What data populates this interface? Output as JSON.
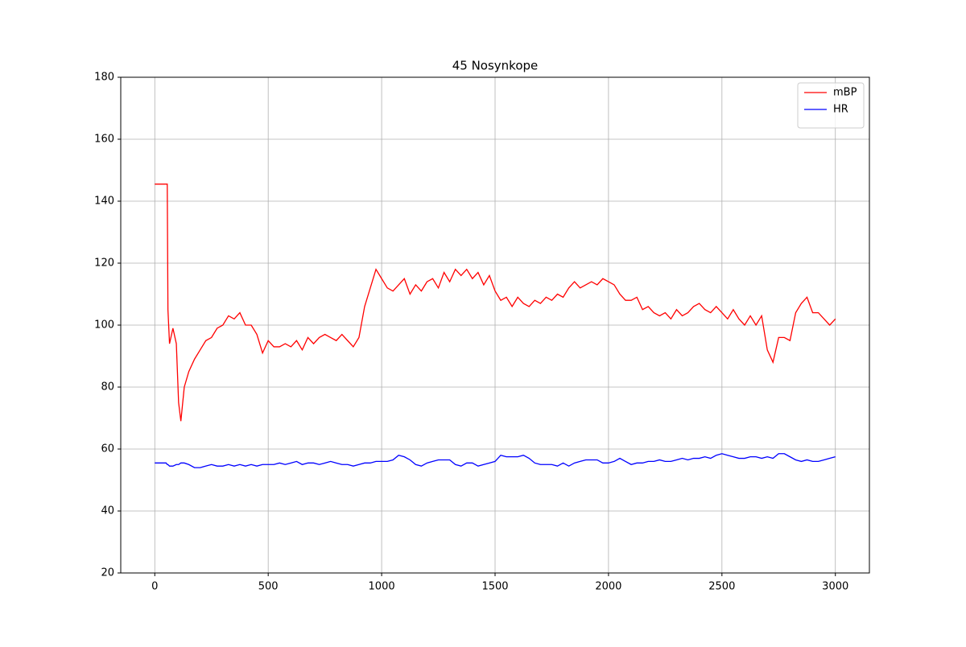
{
  "chart_data": {
    "type": "line",
    "title": "45 Nosynkope",
    "x": [
      0,
      50,
      55,
      58,
      65,
      80,
      95,
      105,
      115,
      130,
      150,
      175,
      200,
      225,
      250,
      275,
      300,
      325,
      350,
      375,
      400,
      425,
      450,
      475,
      500,
      525,
      550,
      575,
      600,
      625,
      650,
      675,
      700,
      725,
      750,
      775,
      800,
      825,
      850,
      875,
      900,
      925,
      950,
      975,
      1000,
      1025,
      1050,
      1075,
      1100,
      1125,
      1150,
      1175,
      1200,
      1225,
      1250,
      1275,
      1300,
      1325,
      1350,
      1375,
      1400,
      1425,
      1450,
      1475,
      1500,
      1525,
      1550,
      1575,
      1600,
      1625,
      1650,
      1675,
      1700,
      1725,
      1750,
      1775,
      1800,
      1825,
      1850,
      1875,
      1900,
      1925,
      1950,
      1975,
      2000,
      2025,
      2050,
      2075,
      2100,
      2125,
      2150,
      2175,
      2200,
      2225,
      2250,
      2275,
      2300,
      2325,
      2350,
      2375,
      2400,
      2425,
      2450,
      2475,
      2500,
      2525,
      2550,
      2575,
      2600,
      2625,
      2650,
      2675,
      2700,
      2725,
      2750,
      2775,
      2800,
      2825,
      2850,
      2875,
      2900,
      2925,
      2950,
      2975,
      3000
    ],
    "series": [
      {
        "name": "mBP",
        "color": "#ff0000",
        "values": [
          145.5,
          145.5,
          145.5,
          105,
          94,
          99,
          94,
          75,
          69,
          80,
          85,
          89,
          92,
          95,
          96,
          99,
          100,
          103,
          102,
          104,
          100,
          100,
          97,
          91,
          95,
          93,
          93,
          94,
          93,
          95,
          92,
          96,
          94,
          96,
          97,
          96,
          95,
          97,
          95,
          93,
          96,
          106,
          112,
          118,
          115,
          112,
          111,
          113,
          115,
          110,
          113,
          111,
          114,
          115,
          112,
          117,
          114,
          118,
          116,
          118,
          115,
          117,
          113,
          116,
          111,
          108,
          109,
          106,
          109,
          107,
          106,
          108,
          107,
          109,
          108,
          110,
          109,
          112,
          114,
          112,
          113,
          114,
          113,
          115,
          114,
          113,
          110,
          108,
          108,
          109,
          105,
          106,
          104,
          103,
          104,
          102,
          105,
          103,
          104,
          106,
          107,
          105,
          104,
          106,
          104,
          102,
          105,
          102,
          100,
          103,
          100,
          103,
          92,
          88,
          96,
          96,
          95,
          104,
          107,
          109,
          104,
          104,
          102,
          100,
          102
        ]
      },
      {
        "name": "HR",
        "color": "#0000ff",
        "values": [
          55.5,
          55.5,
          55,
          55,
          54.5,
          54.5,
          55,
          55,
          55.5,
          55.5,
          55,
          54,
          54,
          54.5,
          55,
          54.5,
          54.5,
          55,
          54.5,
          55,
          54.5,
          55,
          54.5,
          55,
          55,
          55,
          55.5,
          55,
          55.5,
          56,
          55,
          55.5,
          55.5,
          55,
          55.5,
          56,
          55.5,
          55,
          55,
          54.5,
          55,
          55.5,
          55.5,
          56,
          56,
          56,
          56.5,
          58,
          57.5,
          56.5,
          55,
          54.5,
          55.5,
          56,
          56.5,
          56.5,
          56.5,
          55,
          54.5,
          55.5,
          55.5,
          54.5,
          55,
          55.5,
          56,
          58,
          57.5,
          57.5,
          57.5,
          58,
          57,
          55.5,
          55,
          55,
          55,
          54.5,
          55.5,
          54.5,
          55.5,
          56,
          56.5,
          56.5,
          56.5,
          55.5,
          55.5,
          56,
          57,
          56,
          55,
          55.5,
          55.5,
          56,
          56,
          56.5,
          56,
          56,
          56.5,
          57,
          56.5,
          57,
          57,
          57.5,
          57,
          58,
          58.5,
          58,
          57.5,
          57,
          57,
          57.5,
          57.5,
          57,
          57.5,
          57,
          58.5,
          58.5,
          57.5,
          56.5,
          56,
          56.5,
          56,
          56,
          56.5,
          57,
          57.5
        ]
      }
    ],
    "xlim": [
      -150,
      3150
    ],
    "xticks": [
      0,
      500,
      1000,
      1500,
      2000,
      2500,
      3000
    ],
    "ylim": [
      20,
      180
    ],
    "yticks": [
      20,
      40,
      60,
      80,
      100,
      120,
      140,
      160,
      180
    ],
    "grid": true,
    "legend": "upper right"
  }
}
